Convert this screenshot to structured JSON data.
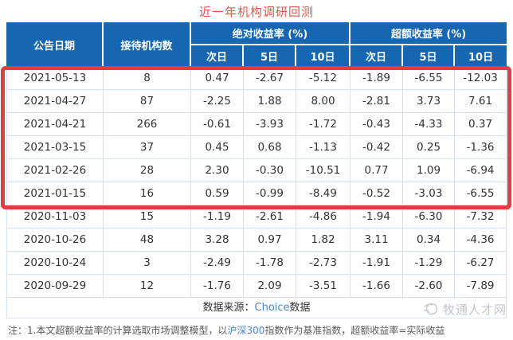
{
  "title": "近一年机构调研回测",
  "table": {
    "header": {
      "date": "公告日期",
      "institutions": "接待机构数",
      "absolute": "绝对收益率 (%)",
      "excess": "超额收益率 (%)",
      "sub": [
        "次日",
        "5日",
        "10日"
      ]
    },
    "rows": [
      {
        "date": "2021-05-13",
        "institutions": "8",
        "values": [
          "0.47",
          "-2.67",
          "-5.12",
          "-1.89",
          "-6.55",
          "-12.03"
        ],
        "highlighted": true
      },
      {
        "date": "2021-04-27",
        "institutions": "87",
        "values": [
          "-2.25",
          "1.88",
          "8.00",
          "-2.81",
          "3.73",
          "7.61"
        ],
        "highlighted": true
      },
      {
        "date": "2021-04-21",
        "institutions": "266",
        "values": [
          "-0.61",
          "-3.93",
          "-1.72",
          "-0.43",
          "-4.33",
          "0.37"
        ],
        "highlighted": true
      },
      {
        "date": "2021-03-15",
        "institutions": "37",
        "values": [
          "0.45",
          "0.68",
          "-1.13",
          "-0.42",
          "0.25",
          "-1.36"
        ],
        "highlighted": true
      },
      {
        "date": "2021-02-26",
        "institutions": "28",
        "values": [
          "2.30",
          "-0.30",
          "-10.51",
          "0.77",
          "1.09",
          "-6.94"
        ],
        "highlighted": true
      },
      {
        "date": "2021-01-15",
        "institutions": "16",
        "values": [
          "0.59",
          "-0.99",
          "-8.49",
          "-0.52",
          "-3.03",
          "-6.55"
        ],
        "highlighted": true
      },
      {
        "date": "2020-11-03",
        "institutions": "15",
        "values": [
          "-1.19",
          "-2.61",
          "-4.86",
          "-1.94",
          "-6.30",
          "-7.32"
        ],
        "highlighted": false
      },
      {
        "date": "2020-10-26",
        "institutions": "48",
        "values": [
          "3.28",
          "0.97",
          "1.82",
          "3.11",
          "0.34",
          "-4.36"
        ],
        "highlighted": false
      },
      {
        "date": "2020-10-24",
        "institutions": "3",
        "values": [
          "-2.49",
          "-1.78",
          "-2.73",
          "-1.91",
          "-1.29",
          "-6.27"
        ],
        "highlighted": false
      },
      {
        "date": "2020-09-29",
        "institutions": "12",
        "values": [
          "-1.76",
          "2.09",
          "-3.51",
          "-1.66",
          "-2.60",
          "-7.89"
        ],
        "highlighted": false
      }
    ]
  },
  "footer": {
    "source_prefix": "数据来源：",
    "source_link": "Choice",
    "source_suffix": "数据"
  },
  "watermark": {
    "text": "牧通人才网",
    "logo": "mutong-swirl-logo"
  },
  "note": {
    "prefix": "注：1.本文超额收益率的计算选取市场调整模型，以",
    "link": "沪深300",
    "suffix": "指数作为基准指数，超额收益率=实际收益"
  },
  "colors": {
    "header_blue": "#1567b2",
    "title_red": "#e2574a",
    "highlight_red": "#e23c3c",
    "grid_line": "#d6e2f0",
    "link_blue": "#4a86c8",
    "watermark_gray": "#c2c5c9"
  },
  "chart_data": {
    "type": "table",
    "title": "近一年机构调研回测",
    "column_groups": [
      "绝对收益率 (%)",
      "超额收益率 (%)"
    ],
    "columns": [
      "公告日期",
      "接待机构数",
      "绝对收益率-次日",
      "绝对收益率-5日",
      "绝对收益率-10日",
      "超额收益率-次日",
      "超额收益率-5日",
      "超额收益率-10日"
    ],
    "rows": [
      [
        "2021-05-13",
        8,
        0.47,
        -2.67,
        -5.12,
        -1.89,
        -6.55,
        -12.03
      ],
      [
        "2021-04-27",
        87,
        -2.25,
        1.88,
        8.0,
        -2.81,
        3.73,
        7.61
      ],
      [
        "2021-04-21",
        266,
        -0.61,
        -3.93,
        -1.72,
        -0.43,
        -4.33,
        0.37
      ],
      [
        "2021-03-15",
        37,
        0.45,
        0.68,
        -1.13,
        -0.42,
        0.25,
        -1.36
      ],
      [
        "2021-02-26",
        28,
        2.3,
        -0.3,
        -10.51,
        0.77,
        1.09,
        -6.94
      ],
      [
        "2021-01-15",
        16,
        0.59,
        -0.99,
        -8.49,
        -0.52,
        -3.03,
        -6.55
      ],
      [
        "2020-11-03",
        15,
        -1.19,
        -2.61,
        -4.86,
        -1.94,
        -6.3,
        -7.32
      ],
      [
        "2020-10-26",
        48,
        3.28,
        0.97,
        1.82,
        3.11,
        0.34,
        -4.36
      ],
      [
        "2020-10-24",
        3,
        -2.49,
        -1.78,
        -2.73,
        -1.91,
        -1.29,
        -6.27
      ],
      [
        "2020-09-29",
        12,
        -1.76,
        2.09,
        -3.51,
        -1.66,
        -2.6,
        -7.89
      ]
    ],
    "highlighted_rows": [
      0,
      1,
      2,
      3,
      4,
      5
    ],
    "source_note": "数据来源：Choice数据",
    "footnote": "注：1.本文超额收益率的计算选取市场调整模型，以沪深300指数作为基准指数，超额收益率=实际收益"
  }
}
